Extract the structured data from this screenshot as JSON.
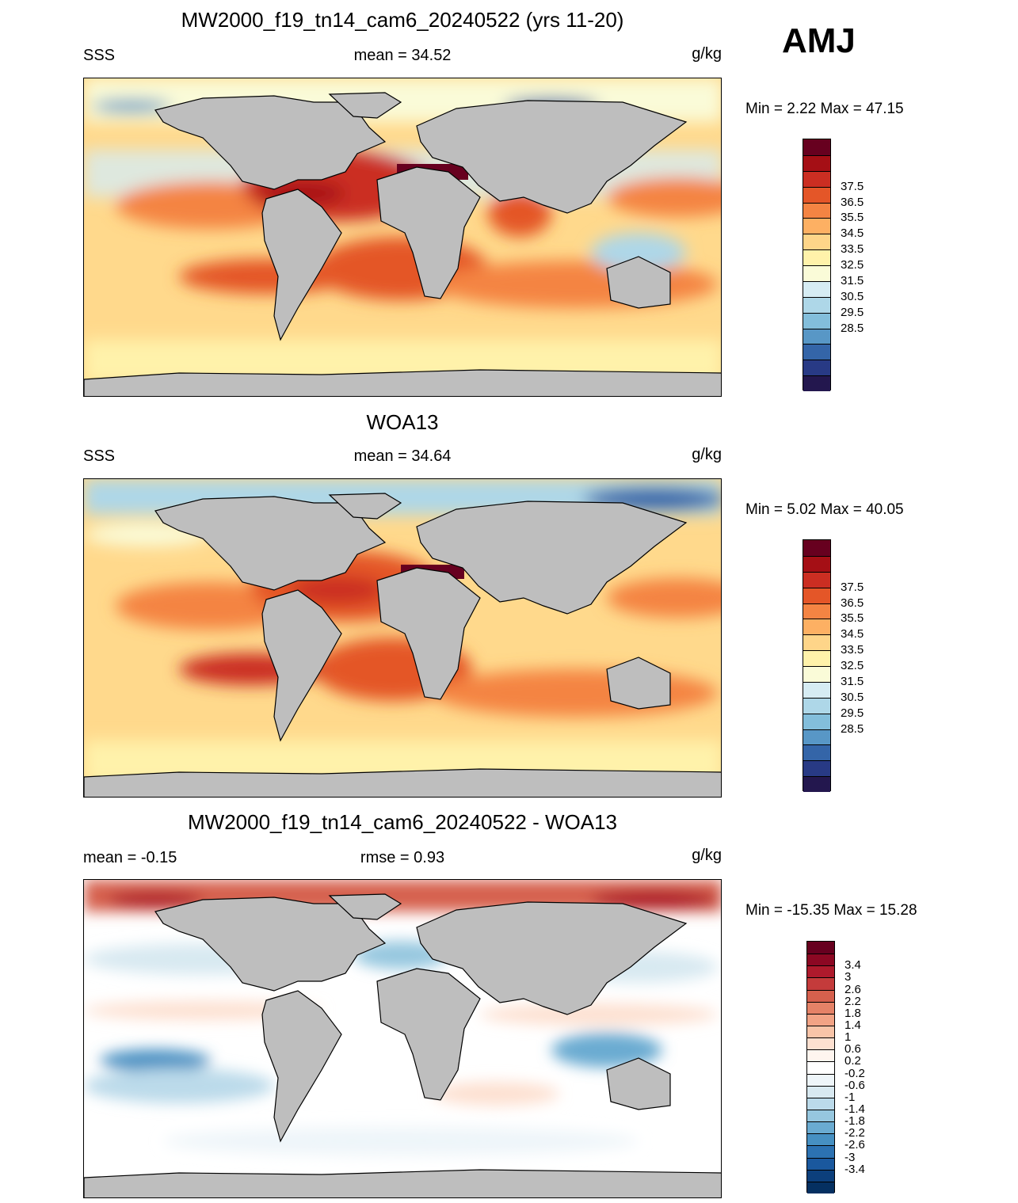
{
  "season": "AMJ",
  "panels": [
    {
      "title": "MW2000_f19_tn14_cam6_20240522 (yrs 11-20)",
      "left_label": "SSS",
      "center_label": "mean =  34.52",
      "units": "g/kg",
      "minmax": "Min =   2.22 Max =  47.15",
      "colorbar": {
        "labels": [
          "37.5",
          "36.5",
          "35.5",
          "34.5",
          "33.5",
          "32.5",
          "31.5",
          "30.5",
          "29.5",
          "28.5"
        ],
        "colors": [
          "#67001f",
          "#a50f15",
          "#cb2e22",
          "#e45628",
          "#f48443",
          "#fdb063",
          "#fed589",
          "#fff2aa",
          "#fafbd8",
          "#d6ecf3",
          "#aed7e8",
          "#83bedb",
          "#5897c6",
          "#3465a8",
          "#283a85",
          "#23174e"
        ]
      }
    },
    {
      "title": "WOA13",
      "left_label": "SSS",
      "center_label": "mean =  34.64",
      "units": "g/kg",
      "minmax": "Min =   5.02 Max =  40.05",
      "colorbar": {
        "labels": [
          "37.5",
          "36.5",
          "35.5",
          "34.5",
          "33.5",
          "32.5",
          "31.5",
          "30.5",
          "29.5",
          "28.5"
        ],
        "colors": [
          "#67001f",
          "#a50f15",
          "#cb2e22",
          "#e45628",
          "#f48443",
          "#fdb063",
          "#fed589",
          "#fff2aa",
          "#fafbd8",
          "#d6ecf3",
          "#aed7e8",
          "#83bedb",
          "#5897c6",
          "#3465a8",
          "#283a85",
          "#23174e"
        ]
      }
    },
    {
      "title": "MW2000_f19_tn14_cam6_20240522 - WOA13",
      "left_label": "mean =  -0.15",
      "center_label": "rmse =   0.93",
      "units": "g/kg",
      "minmax": "Min = -15.35 Max =  15.28",
      "colorbar": {
        "labels": [
          "3.4",
          "3",
          "2.6",
          "2.2",
          "1.8",
          "1.4",
          "1",
          "0.6",
          "0.2",
          "-0.2",
          "-0.6",
          "-1",
          "-1.4",
          "-1.8",
          "-2.2",
          "-2.6",
          "-3",
          "-3.4"
        ],
        "colors": [
          "#67001f",
          "#8c0823",
          "#ae1a2c",
          "#c43b3b",
          "#d6604d",
          "#e58267",
          "#f2a385",
          "#f8c4a8",
          "#fde0d0",
          "#fff5ef",
          "#ffffff",
          "#eef5f9",
          "#d8e9f1",
          "#bbdaea",
          "#96c7df",
          "#6aabd1",
          "#4690c2",
          "#2c72b2",
          "#1a589e",
          "#0c3f7c",
          "#053061"
        ]
      }
    }
  ]
}
